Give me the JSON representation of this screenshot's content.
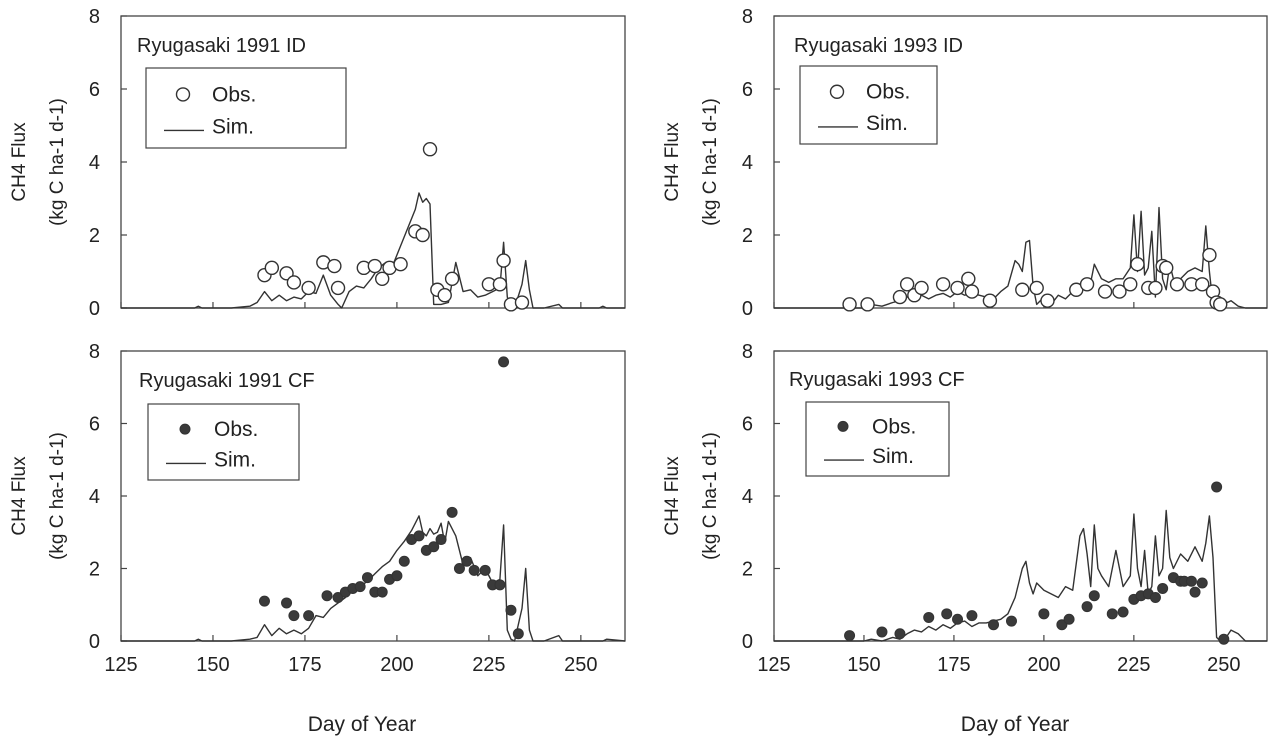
{
  "chart_data": [
    {
      "type": "line",
      "title": "Ryugasaki 1991 ID",
      "ylabel_line1": "CH4 Flux",
      "ylabel_line2": "(kg C ha-1 d-1)",
      "xlim": [
        125,
        262
      ],
      "ylim": [
        0,
        8
      ],
      "xticks": [
        "125",
        "150",
        "175",
        "200",
        "225",
        "250"
      ],
      "yticks": [
        "0",
        "2",
        "4",
        "6",
        "8"
      ],
      "legend": {
        "obs": "Obs.",
        "sim": "Sim."
      },
      "obs_marker": "open-circle",
      "series": [
        {
          "name": "Obs.",
          "kind": "scatter",
          "x": [
            164,
            166,
            170,
            172,
            176,
            180,
            183,
            184,
            191,
            194,
            196,
            198,
            201,
            205,
            207,
            209,
            211,
            213,
            215,
            225,
            228,
            229,
            231,
            234
          ],
          "y": [
            0.9,
            1.1,
            0.95,
            0.7,
            0.55,
            1.25,
            1.15,
            0.55,
            1.1,
            1.15,
            0.8,
            1.1,
            1.2,
            2.1,
            2.0,
            4.35,
            0.5,
            0.35,
            0.8,
            0.65,
            0.65,
            1.3,
            0.1,
            0.15
          ]
        },
        {
          "name": "Sim.",
          "kind": "line",
          "x": [
            125,
            145,
            146,
            147,
            155,
            160,
            162,
            164,
            166,
            168,
            170,
            172,
            174,
            176,
            178,
            180,
            182,
            184,
            185,
            187,
            189,
            191,
            193,
            195,
            197,
            199,
            201,
            203,
            205,
            206,
            207,
            208,
            209,
            210,
            212,
            214,
            216,
            218,
            220,
            222,
            224,
            226,
            228,
            229,
            230,
            231,
            232,
            234,
            235,
            236,
            237,
            240,
            244,
            245,
            246,
            255,
            256,
            257,
            258,
            262
          ],
          "y": [
            0,
            0,
            0.05,
            0,
            0,
            0.05,
            0.15,
            0.45,
            0.2,
            0.35,
            0.2,
            0.3,
            0.25,
            0.45,
            0.4,
            0.9,
            0.35,
            0.1,
            0,
            0.45,
            0.6,
            0.55,
            0.8,
            1.1,
            1.25,
            1.2,
            1.7,
            2.2,
            2.7,
            3.15,
            2.9,
            3.0,
            2.85,
            0.1,
            0.1,
            0.15,
            1.25,
            0.45,
            0.5,
            0.3,
            0.35,
            0.45,
            0.55,
            1.8,
            0.3,
            0.05,
            0,
            0.65,
            1.3,
            0.5,
            0,
            0,
            0.1,
            0,
            0,
            0,
            0.05,
            0,
            0,
            0
          ]
        }
      ]
    },
    {
      "type": "line",
      "title": "Ryugasaki 1993 ID",
      "ylabel_line1": "CH4 Flux",
      "ylabel_line2": "(kg C ha-1 d-1)",
      "xlim": [
        125,
        262
      ],
      "ylim": [
        0,
        8
      ],
      "xticks": [
        "125",
        "150",
        "175",
        "200",
        "225",
        "250"
      ],
      "yticks": [
        "0",
        "2",
        "4",
        "6",
        "8"
      ],
      "legend": {
        "obs": "Obs.",
        "sim": "Sim."
      },
      "obs_marker": "open-circle",
      "series": [
        {
          "name": "Obs.",
          "kind": "scatter",
          "x": [
            146,
            151,
            160,
            162,
            164,
            166,
            172,
            176,
            179,
            180,
            185,
            194,
            198,
            201,
            209,
            212,
            217,
            221,
            224,
            226,
            229,
            231,
            233,
            234,
            237,
            241,
            244,
            246,
            247,
            248,
            249
          ],
          "y": [
            0.1,
            0.1,
            0.3,
            0.65,
            0.35,
            0.55,
            0.65,
            0.55,
            0.8,
            0.45,
            0.2,
            0.5,
            0.55,
            0.2,
            0.5,
            0.65,
            0.45,
            0.45,
            0.65,
            1.2,
            0.55,
            0.55,
            1.15,
            1.1,
            0.65,
            0.65,
            0.65,
            1.45,
            0.45,
            0.15,
            0.1
          ]
        },
        {
          "name": "Sim.",
          "kind": "line",
          "x": [
            125,
            150,
            152,
            155,
            158,
            160,
            162,
            164,
            166,
            168,
            170,
            172,
            174,
            176,
            178,
            180,
            182,
            184,
            186,
            188,
            190,
            192,
            193,
            194,
            195,
            196,
            197,
            198,
            200,
            202,
            204,
            206,
            208,
            210,
            212,
            213,
            214,
            216,
            218,
            220,
            222,
            224,
            225,
            226,
            227,
            228,
            229,
            230,
            231,
            232,
            233,
            234,
            235,
            236,
            238,
            240,
            242,
            244,
            245,
            246,
            247,
            249,
            251,
            252,
            254,
            256,
            262
          ],
          "y": [
            0,
            0,
            0.1,
            0.05,
            0.15,
            0.2,
            0.3,
            0.5,
            0.35,
            0.25,
            0.35,
            0.4,
            0.3,
            0.45,
            0.35,
            0.4,
            0.35,
            0.3,
            0.25,
            0.45,
            0.6,
            1.3,
            1.2,
            1.0,
            1.8,
            1.85,
            0.6,
            0.1,
            0.3,
            0.1,
            0.35,
            0.25,
            0.45,
            0.6,
            0.5,
            0.7,
            1.2,
            0.8,
            0.7,
            0.8,
            0.8,
            1.1,
            2.55,
            1.0,
            2.65,
            0.9,
            1.1,
            2.1,
            0.3,
            2.75,
            0.8,
            0.5,
            1.2,
            0.8,
            0.8,
            1.0,
            1.1,
            1.0,
            2.25,
            1.0,
            0.1,
            0.3,
            0.15,
            0.2,
            0.05,
            0,
            0
          ]
        }
      ]
    },
    {
      "type": "line",
      "title": "Ryugasaki 1991 CF",
      "ylabel_line1": "CH4 Flux",
      "ylabel_line2": "(kg C ha-1 d-1)",
      "xlim": [
        125,
        262
      ],
      "ylim": [
        0,
        8
      ],
      "xticks": [
        "125",
        "150",
        "175",
        "200",
        "225",
        "250"
      ],
      "yticks": [
        "0",
        "2",
        "4",
        "6",
        "8"
      ],
      "legend": {
        "obs": "Obs.",
        "sim": "Sim."
      },
      "obs_marker": "filled-circle",
      "series": [
        {
          "name": "Obs.",
          "kind": "scatter",
          "x": [
            164,
            170,
            172,
            176,
            181,
            184,
            186,
            188,
            190,
            192,
            194,
            196,
            198,
            200,
            202,
            204,
            206,
            208,
            210,
            212,
            215,
            217,
            219,
            221,
            224,
            226,
            228,
            229,
            231,
            233
          ],
          "y": [
            1.1,
            1.05,
            0.7,
            0.7,
            1.25,
            1.2,
            1.35,
            1.45,
            1.5,
            1.75,
            1.35,
            1.35,
            1.7,
            1.8,
            2.2,
            2.8,
            2.9,
            2.5,
            2.6,
            2.8,
            3.55,
            2.0,
            2.2,
            1.95,
            1.95,
            1.55,
            1.55,
            7.7,
            0.85,
            0.2
          ]
        },
        {
          "name": "Sim.",
          "kind": "line",
          "x": [
            125,
            145,
            146,
            147,
            155,
            160,
            162,
            164,
            166,
            168,
            170,
            172,
            174,
            176,
            178,
            180,
            182,
            184,
            186,
            188,
            190,
            192,
            194,
            196,
            198,
            200,
            202,
            204,
            206,
            207,
            208,
            209,
            210,
            211,
            212,
            213,
            214,
            216,
            218,
            220,
            222,
            224,
            226,
            228,
            229,
            230,
            231,
            232,
            234,
            235,
            236,
            237,
            240,
            244,
            245,
            246,
            256,
            257,
            262
          ],
          "y": [
            0,
            0,
            0.05,
            0,
            0,
            0.05,
            0.1,
            0.45,
            0.15,
            0.35,
            0.2,
            0.3,
            0.2,
            0.35,
            0.7,
            0.65,
            0.9,
            1.05,
            1.2,
            1.4,
            1.5,
            1.65,
            1.85,
            2.05,
            2.2,
            2.5,
            2.75,
            3.05,
            3.45,
            3.0,
            2.9,
            3.1,
            2.95,
            3.0,
            3.25,
            2.7,
            3.3,
            2.9,
            2.1,
            2.3,
            1.8,
            2.0,
            1.6,
            1.7,
            3.2,
            0.3,
            0.05,
            0,
            0.9,
            2.0,
            0.3,
            0,
            0,
            0.15,
            0,
            0,
            0,
            0.05,
            0
          ]
        }
      ]
    },
    {
      "type": "line",
      "title": "Ryugasaki 1993 CF",
      "ylabel_line1": "CH4 Flux",
      "ylabel_line2": "(kg C ha-1 d-1)",
      "xlim": [
        125,
        262
      ],
      "ylim": [
        0,
        8
      ],
      "xticks": [
        "125",
        "150",
        "175",
        "200",
        "225",
        "250"
      ],
      "yticks": [
        "0",
        "2",
        "4",
        "6",
        "8"
      ],
      "legend": {
        "obs": "Obs.",
        "sim": "Sim."
      },
      "obs_marker": "filled-circle",
      "series": [
        {
          "name": "Obs.",
          "kind": "scatter",
          "x": [
            146,
            155,
            160,
            168,
            173,
            176,
            180,
            186,
            191,
            200,
            205,
            207,
            212,
            214,
            219,
            222,
            225,
            227,
            229,
            231,
            233,
            236,
            238,
            239,
            241,
            242,
            244,
            248,
            250
          ],
          "y": [
            0.15,
            0.25,
            0.2,
            0.65,
            0.75,
            0.6,
            0.7,
            0.45,
            0.55,
            0.75,
            0.45,
            0.6,
            0.95,
            1.25,
            0.75,
            0.8,
            1.15,
            1.25,
            1.3,
            1.2,
            1.45,
            1.75,
            1.65,
            1.65,
            1.65,
            1.35,
            1.6,
            4.25,
            0.05
          ]
        },
        {
          "name": "Sim.",
          "kind": "line",
          "x": [
            125,
            150,
            152,
            155,
            158,
            160,
            162,
            164,
            166,
            168,
            170,
            172,
            174,
            176,
            178,
            180,
            182,
            184,
            186,
            188,
            190,
            192,
            194,
            195,
            196,
            197,
            198,
            200,
            202,
            204,
            206,
            208,
            210,
            211,
            212,
            213,
            214,
            215,
            216,
            218,
            220,
            222,
            224,
            225,
            226,
            227,
            228,
            229,
            230,
            231,
            232,
            233,
            234,
            235,
            236,
            238,
            240,
            242,
            244,
            245,
            246,
            247,
            248,
            249,
            250,
            252,
            254,
            256,
            262
          ],
          "y": [
            0,
            0,
            0.05,
            0,
            0.1,
            0.05,
            0.2,
            0.3,
            0.25,
            0.4,
            0.3,
            0.45,
            0.35,
            0.5,
            0.55,
            0.4,
            0.5,
            0.5,
            0.55,
            0.6,
            0.75,
            1.2,
            2.0,
            2.2,
            1.6,
            1.3,
            1.6,
            1.4,
            1.3,
            1.2,
            1.5,
            1.4,
            2.9,
            3.1,
            2.4,
            1.5,
            3.2,
            2.0,
            1.8,
            1.5,
            2.5,
            1.5,
            1.8,
            3.5,
            2.0,
            1.5,
            2.5,
            1.3,
            1.5,
            2.9,
            1.8,
            2.0,
            3.6,
            2.3,
            2.0,
            2.4,
            2.2,
            2.6,
            2.2,
            2.7,
            3.45,
            2.3,
            0.1,
            0,
            0,
            0.3,
            0.2,
            0,
            0
          ]
        }
      ]
    }
  ],
  "xlabel": "Day of Year"
}
